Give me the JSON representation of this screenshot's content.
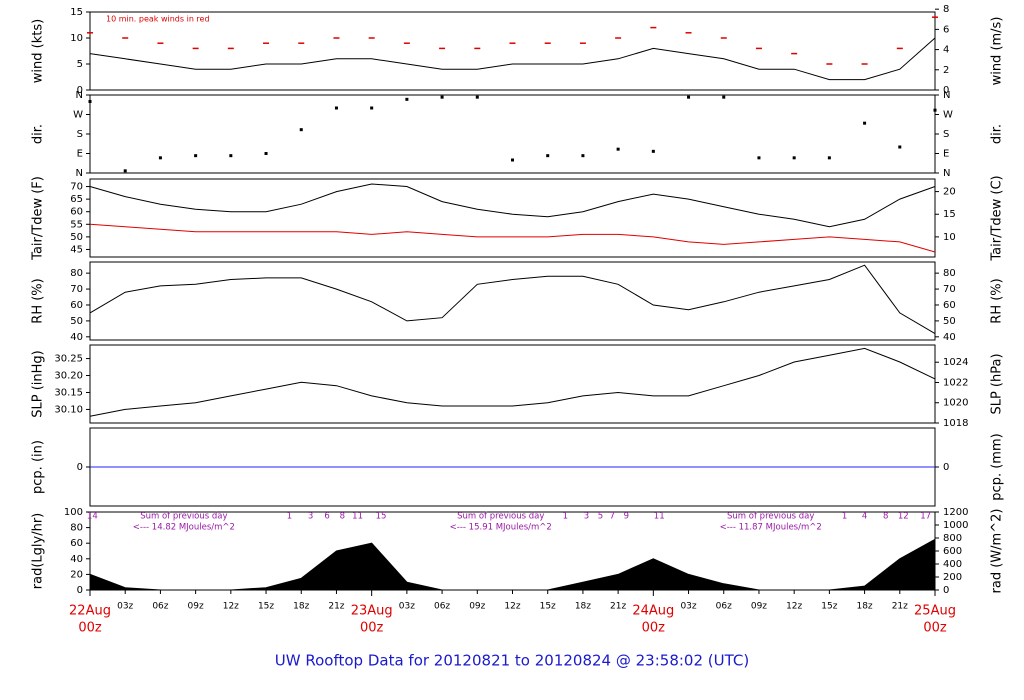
{
  "title": "UW Rooftop Data for 20120821  to  20120824 @ 23:58:02  (UTC)",
  "chart_data": [
    {
      "type": "line",
      "ylabel": "wind (kts)",
      "y2label": "wind (m/s)",
      "note": "10 min. peak winds in red",
      "x": [
        0,
        3,
        6,
        9,
        12,
        15,
        18,
        21,
        24,
        27,
        30,
        33,
        36,
        39,
        42,
        45,
        48,
        51,
        54,
        57,
        60,
        63,
        66,
        69,
        72
      ],
      "series": [
        {
          "name": "wind",
          "color": "#000000",
          "marker": "line",
          "values": [
            7,
            6,
            5,
            4,
            4,
            5,
            5,
            6,
            6,
            5,
            4,
            4,
            5,
            5,
            5,
            6,
            8,
            7,
            6,
            4,
            4,
            2,
            2,
            4,
            10
          ]
        },
        {
          "name": "peak",
          "color": "#e00000",
          "marker": "dash",
          "values": [
            11,
            10,
            9,
            8,
            8,
            9,
            9,
            10,
            10,
            9,
            8,
            8,
            9,
            9,
            9,
            10,
            12,
            11,
            10,
            8,
            7,
            5,
            5,
            8,
            14
          ]
        }
      ],
      "ylim": [
        0,
        15
      ],
      "yticks": [
        0,
        5,
        10,
        15
      ],
      "y2lim": [
        0,
        7.72
      ],
      "y2ticks": [
        0,
        2,
        4,
        6,
        8
      ]
    },
    {
      "type": "scatter",
      "ylabel": "dir.",
      "y2label": "dir.",
      "x": [
        0,
        3,
        6,
        9,
        12,
        15,
        18,
        21,
        24,
        27,
        30,
        33,
        36,
        39,
        42,
        45,
        48,
        51,
        54,
        57,
        60,
        63,
        66,
        69,
        72
      ],
      "series": [
        {
          "name": "dir",
          "color": "#000000",
          "values": [
            330,
            10,
            70,
            80,
            80,
            90,
            200,
            300,
            300,
            340,
            350,
            350,
            60,
            80,
            80,
            110,
            100,
            350,
            350,
            70,
            70,
            70,
            230,
            120,
            290
          ]
        }
      ],
      "ylim": [
        0,
        360
      ],
      "yticks": [
        {
          "value": 0,
          "label": "N"
        },
        {
          "value": 90,
          "label": "E"
        },
        {
          "value": 180,
          "label": "S"
        },
        {
          "value": 270,
          "label": "W"
        },
        {
          "value": 360,
          "label": "N"
        }
      ],
      "y2lim": [
        0,
        360
      ],
      "y2ticks": [
        {
          "value": 0,
          "label": "N"
        },
        {
          "value": 90,
          "label": "E"
        },
        {
          "value": 180,
          "label": "S"
        },
        {
          "value": 270,
          "label": "W"
        },
        {
          "value": 360,
          "label": "N"
        }
      ]
    },
    {
      "type": "line",
      "ylabel": "Tair/Tdew (F)",
      "y2label": "Tair/Tdew (C)",
      "x": [
        0,
        3,
        6,
        9,
        12,
        15,
        18,
        21,
        24,
        27,
        30,
        33,
        36,
        39,
        42,
        45,
        48,
        51,
        54,
        57,
        60,
        63,
        66,
        69,
        72
      ],
      "series": [
        {
          "name": "Tair",
          "color": "#000000",
          "marker": "line",
          "values": [
            70,
            66,
            63,
            61,
            60,
            60,
            63,
            68,
            71,
            70,
            64,
            61,
            59,
            58,
            60,
            64,
            67,
            65,
            62,
            59,
            57,
            54,
            57,
            65,
            70
          ]
        },
        {
          "name": "Tdew",
          "color": "#e00000",
          "marker": "line",
          "values": [
            55,
            54,
            53,
            52,
            52,
            52,
            52,
            52,
            51,
            52,
            51,
            50,
            50,
            50,
            51,
            51,
            50,
            48,
            47,
            48,
            49,
            50,
            49,
            48,
            44
          ]
        }
      ],
      "ylim": [
        42,
        73
      ],
      "yticks": [
        45,
        50,
        55,
        60,
        65,
        70
      ],
      "y2lim": [
        5.56,
        22.78
      ],
      "y2ticks": [
        10,
        15,
        20
      ]
    },
    {
      "type": "line",
      "ylabel": "RH (%)",
      "y2label": "RH (%)",
      "x": [
        0,
        3,
        6,
        9,
        12,
        15,
        18,
        21,
        24,
        27,
        30,
        33,
        36,
        39,
        42,
        45,
        48,
        51,
        54,
        57,
        60,
        63,
        66,
        69,
        72
      ],
      "series": [
        {
          "name": "RH",
          "color": "#000000",
          "marker": "line",
          "values": [
            55,
            68,
            72,
            73,
            76,
            77,
            77,
            70,
            62,
            50,
            52,
            73,
            76,
            78,
            78,
            73,
            60,
            57,
            62,
            68,
            72,
            76,
            85,
            55,
            42
          ]
        }
      ],
      "ylim": [
        38,
        87
      ],
      "yticks": [
        40,
        50,
        60,
        70,
        80
      ],
      "y2lim": [
        38,
        87
      ],
      "y2ticks": [
        40,
        50,
        60,
        70,
        80
      ]
    },
    {
      "type": "line",
      "ylabel": "SLP (inHg)",
      "y2label": "SLP (hPa)",
      "x": [
        0,
        3,
        6,
        9,
        12,
        15,
        18,
        21,
        24,
        27,
        30,
        33,
        36,
        39,
        42,
        45,
        48,
        51,
        54,
        57,
        60,
        63,
        66,
        69,
        72
      ],
      "series": [
        {
          "name": "SLP",
          "color": "#000000",
          "marker": "line",
          "values": [
            30.08,
            30.1,
            30.11,
            30.12,
            30.14,
            30.16,
            30.18,
            30.17,
            30.14,
            30.12,
            30.11,
            30.11,
            30.11,
            30.12,
            30.14,
            30.15,
            30.14,
            30.14,
            30.17,
            30.2,
            30.24,
            30.26,
            30.28,
            30.24,
            30.19
          ]
        }
      ],
      "ylim": [
        30.06,
        30.29
      ],
      "yticks": [
        {
          "value": 30.1,
          "label": "30.10"
        },
        30.15,
        {
          "value": 30.2,
          "label": "30.20"
        },
        30.25
      ],
      "y2lim": [
        1018,
        1025.7
      ],
      "y2ticks": [
        1018,
        1020,
        1022,
        1024
      ]
    },
    {
      "type": "line",
      "ylabel": "pcp. (in)",
      "y2label": "pcp. (mm)",
      "x": [
        0,
        3,
        6,
        9,
        12,
        15,
        18,
        21,
        24,
        27,
        30,
        33,
        36,
        39,
        42,
        45,
        48,
        51,
        54,
        57,
        60,
        63,
        66,
        69,
        72
      ],
      "series": [
        {
          "name": "pcp",
          "color": "#2020ff",
          "marker": "line",
          "values": [
            0,
            0,
            0,
            0,
            0,
            0,
            0,
            0,
            0,
            0,
            0,
            0,
            0,
            0,
            0,
            0,
            0,
            0,
            0,
            0,
            0,
            0,
            0,
            0,
            0
          ]
        }
      ],
      "ylim": [
        -1,
        1
      ],
      "yticks": [
        0
      ],
      "y2lim": [
        -1,
        1
      ],
      "y2ticks": [
        0
      ]
    },
    {
      "type": "area",
      "ylabel": "rad(Lgly/hr)",
      "y2label": "rad (W/m^2)",
      "x": [
        0,
        3,
        6,
        9,
        12,
        15,
        18,
        21,
        24,
        27,
        30,
        33,
        36,
        39,
        42,
        45,
        48,
        51,
        54,
        57,
        60,
        63,
        66,
        69,
        72
      ],
      "series": [
        {
          "name": "rad",
          "color": "#000000",
          "values": [
            20,
            3,
            0,
            0,
            0,
            3,
            15,
            50,
            60,
            10,
            0,
            0,
            0,
            0,
            10,
            20,
            40,
            20,
            8,
            0,
            0,
            0,
            5,
            40,
            65
          ]
        }
      ],
      "ylim": [
        0,
        100
      ],
      "yticks": [
        0,
        20,
        40,
        60,
        80,
        100
      ],
      "y2lim": [
        0,
        1200
      ],
      "y2ticks": [
        0,
        200,
        400,
        600,
        800,
        1000,
        1200
      ],
      "annotations": [
        {
          "x": 8,
          "lines": [
            "Sum of previous day",
            "<--- 14.82 MJoules/m^2"
          ]
        },
        {
          "x": 35,
          "lines": [
            "Sum of previous day",
            "<--- 15.91 MJoules/m^2"
          ]
        },
        {
          "x": 58,
          "lines": [
            "Sum of previous day",
            "<--- 11.87 MJoules/m^2"
          ]
        }
      ],
      "hour_marks": [
        {
          "value": 0.2,
          "label": "14"
        },
        {
          "value": 17,
          "label": "1"
        },
        {
          "value": 18.8,
          "label": "3"
        },
        {
          "value": 20.2,
          "label": "6"
        },
        {
          "value": 21.5,
          "label": "8"
        },
        {
          "value": 22.8,
          "label": "11"
        },
        {
          "value": 24.8,
          "label": "15"
        },
        {
          "value": 40.5,
          "label": "1"
        },
        {
          "value": 42.3,
          "label": "3"
        },
        {
          "value": 43.5,
          "label": "5"
        },
        {
          "value": 44.5,
          "label": "7"
        },
        {
          "value": 45.7,
          "label": "9"
        },
        {
          "value": 48.5,
          "label": "11"
        },
        {
          "value": 64.3,
          "label": "1"
        },
        {
          "value": 66,
          "label": "4"
        },
        {
          "value": 67.8,
          "label": "8"
        },
        {
          "value": 69.3,
          "label": "12"
        },
        {
          "value": 71.2,
          "label": "17"
        }
      ],
      "xlim": [
        0,
        72
      ],
      "xticks": [
        {
          "value": 3,
          "label": "03z"
        },
        {
          "value": 6,
          "label": "06z"
        },
        {
          "value": 9,
          "label": "09z"
        },
        {
          "value": 12,
          "label": "12z"
        },
        {
          "value": 15,
          "label": "15z"
        },
        {
          "value": 18,
          "label": "18z"
        },
        {
          "value": 21,
          "label": "21z"
        },
        {
          "value": 27,
          "label": "03z"
        },
        {
          "value": 30,
          "label": "06z"
        },
        {
          "value": 33,
          "label": "09z"
        },
        {
          "value": 36,
          "label": "12z"
        },
        {
          "value": 39,
          "label": "15z"
        },
        {
          "value": 42,
          "label": "18z"
        },
        {
          "value": 45,
          "label": "21z"
        },
        {
          "value": 51,
          "label": "03z"
        },
        {
          "value": 54,
          "label": "06z"
        },
        {
          "value": 57,
          "label": "09z"
        },
        {
          "value": 60,
          "label": "12z"
        },
        {
          "value": 63,
          "label": "15z"
        },
        {
          "value": 66,
          "label": "18z"
        },
        {
          "value": 69,
          "label": "21z"
        }
      ],
      "day_labels": [
        {
          "value": 0,
          "label": "22Aug",
          "sub": "00z"
        },
        {
          "value": 24,
          "label": "23Aug",
          "sub": "00z"
        },
        {
          "value": 48,
          "label": "24Aug",
          "sub": "00z"
        },
        {
          "value": 72,
          "label": "25Aug",
          "sub": "00z"
        }
      ]
    }
  ]
}
